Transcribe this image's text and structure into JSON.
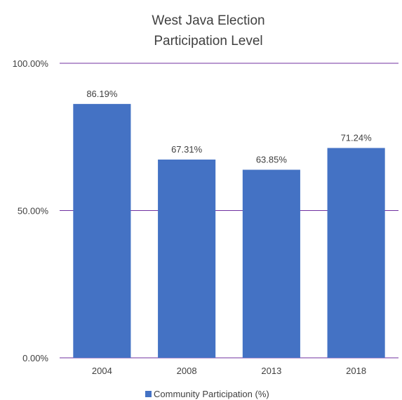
{
  "chart_data": {
    "type": "bar",
    "title": [
      "West Java Election",
      "Participation Level"
    ],
    "categories": [
      "2004",
      "2008",
      "2013",
      "2018"
    ],
    "series": [
      {
        "name": "Community Participation (%)",
        "values": [
          86.19,
          67.31,
          63.85,
          71.24
        ],
        "labels": [
          "86.19%",
          "67.31%",
          "63.85%",
          "71.24%"
        ],
        "color": "#4472C4"
      }
    ],
    "ylim": [
      0,
      100
    ],
    "yticks": [
      0,
      50,
      100
    ],
    "ytick_labels": [
      "0.00%",
      "50.00%",
      "100.00%"
    ],
    "gridline_color": "#7030A0",
    "grid": true,
    "legend": "bottom-center"
  }
}
